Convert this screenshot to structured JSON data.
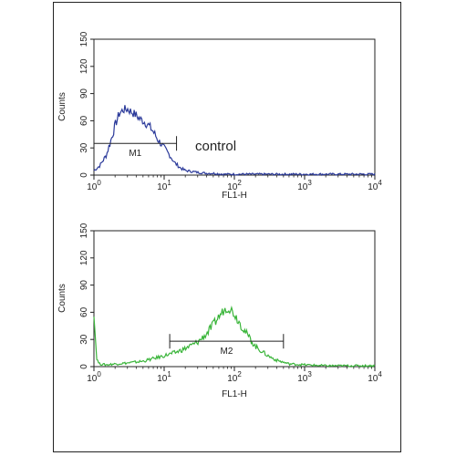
{
  "chart_data": [
    {
      "type": "histogram",
      "x_scale": "log",
      "xlim": [
        1,
        10000
      ],
      "ylim": [
        0,
        150
      ],
      "xlabel": "FL1-H",
      "ylabel": "Counts",
      "x_ticks": [
        {
          "base": "10",
          "exp": "0"
        },
        {
          "base": "10",
          "exp": "1"
        },
        {
          "base": "10",
          "exp": "2"
        },
        {
          "base": "10",
          "exp": "3"
        },
        {
          "base": "10",
          "exp": "4"
        }
      ],
      "y_ticks": [
        "0",
        "30",
        "60",
        "90",
        "120",
        "150"
      ],
      "color": "#2b3a9a",
      "annotation": "control",
      "gate": {
        "label": "M1",
        "x_start": 1,
        "x_end": 15,
        "y": 35
      },
      "series": [
        {
          "x": [
            1,
            1.2,
            1.5,
            1.8,
            2,
            2.3,
            2.6,
            3,
            3.4,
            4,
            4.5,
            5,
            6,
            7,
            8,
            10,
            12,
            14,
            17,
            20,
            25,
            30,
            40,
            50,
            70,
            100,
            200,
            500,
            1000,
            3000,
            10000
          ],
          "y": [
            5,
            10,
            22,
            42,
            55,
            68,
            72,
            73,
            70,
            66,
            62,
            60,
            55,
            48,
            40,
            30,
            22,
            14,
            8,
            5,
            4,
            3,
            2,
            2,
            1,
            1,
            1,
            1,
            1,
            1,
            1
          ]
        }
      ]
    },
    {
      "type": "histogram",
      "x_scale": "log",
      "xlim": [
        1,
        10000
      ],
      "ylim": [
        0,
        150
      ],
      "xlabel": "FL1-H",
      "ylabel": "Counts",
      "x_ticks": [
        {
          "base": "10",
          "exp": "0"
        },
        {
          "base": "10",
          "exp": "1"
        },
        {
          "base": "10",
          "exp": "2"
        },
        {
          "base": "10",
          "exp": "3"
        },
        {
          "base": "10",
          "exp": "4"
        }
      ],
      "y_ticks": [
        "0",
        "30",
        "60",
        "90",
        "120",
        "150"
      ],
      "color": "#3ab53a",
      "gate": {
        "label": "M2",
        "x_start": 12,
        "x_end": 500,
        "y": 28
      },
      "series": [
        {
          "x": [
            1,
            1.05,
            1.1,
            1.2,
            1.5,
            2,
            3,
            5,
            8,
            10,
            15,
            20,
            30,
            40,
            50,
            60,
            70,
            80,
            90,
            100,
            120,
            150,
            200,
            300,
            400,
            600,
            1000,
            2000,
            5000,
            10000
          ],
          "y": [
            60,
            30,
            8,
            3,
            2,
            3,
            4,
            6,
            10,
            12,
            16,
            20,
            27,
            36,
            46,
            55,
            62,
            65,
            63,
            58,
            48,
            36,
            22,
            12,
            7,
            3,
            2,
            1,
            1,
            1
          ]
        }
      ]
    }
  ]
}
